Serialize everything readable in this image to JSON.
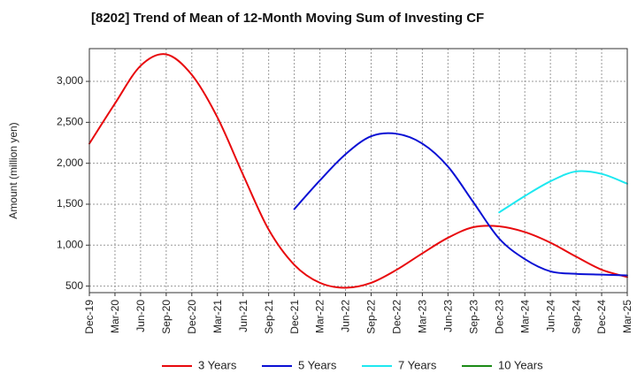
{
  "chart_data": {
    "type": "line",
    "title": "[8202]  Trend of Mean of 12-Month Moving Sum of Investing CF",
    "ylabel": "Amount (million yen)",
    "xlabel": "",
    "ylim": [
      420,
      3400
    ],
    "yticks": [
      500,
      1000,
      1500,
      2000,
      2500,
      3000
    ],
    "ytick_labels": [
      "500",
      "1,000",
      "1,500",
      "2,000",
      "2,500",
      "3,000"
    ],
    "x_categories": [
      "Dec-19",
      "Mar-20",
      "Jun-20",
      "Sep-20",
      "Dec-20",
      "Mar-21",
      "Jun-21",
      "Sep-21",
      "Dec-21",
      "Mar-22",
      "Jun-22",
      "Sep-22",
      "Dec-22",
      "Mar-23",
      "Jun-23",
      "Sep-23",
      "Dec-23",
      "Mar-24",
      "Jun-24",
      "Sep-24",
      "Dec-24",
      "Mar-25"
    ],
    "grid": true,
    "legend_position": "bottom",
    "series": [
      {
        "name": "3 Years",
        "color": "#e8090d",
        "start_index": 0,
        "values": [
          2240,
          2730,
          3190,
          3330,
          3080,
          2560,
          1860,
          1190,
          760,
          540,
          480,
          540,
          700,
          900,
          1090,
          1220,
          1230,
          1160,
          1030,
          860,
          700,
          610
        ]
      },
      {
        "name": "5 Years",
        "color": "#0a10d4",
        "start_index": 8,
        "values": [
          1440,
          1790,
          2110,
          2330,
          2360,
          2240,
          1960,
          1520,
          1080,
          830,
          680,
          650,
          640,
          630
        ]
      },
      {
        "name": "7 Years",
        "color": "#1ee8f0",
        "start_index": 16,
        "values": [
          1400,
          1600,
          1780,
          1900,
          1870,
          1750
        ]
      },
      {
        "name": "10 Years",
        "color": "#1b8a16",
        "start_index": 0,
        "values": []
      }
    ]
  }
}
